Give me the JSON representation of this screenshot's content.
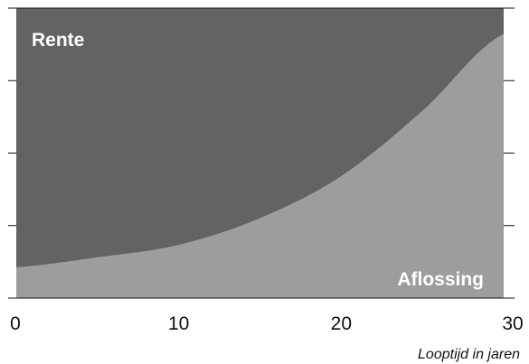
{
  "chart_data": {
    "type": "area",
    "xlabel": "Looptijd in jaren",
    "ylabel": "",
    "x_ticks": [
      0,
      10,
      20,
      30
    ],
    "xlim": [
      0,
      30
    ],
    "ylim": [
      0,
      100
    ],
    "y_tick_count": 3,
    "series": [
      {
        "name": "Aflossing",
        "color": "#9d9d9b",
        "x": [
          0,
          5,
          10,
          15,
          20,
          25,
          30
        ],
        "values": [
          10.6,
          14.0,
          18.3,
          27.5,
          42.0,
          64.5,
          91.0
        ]
      },
      {
        "name": "Rente",
        "color": "#636362",
        "x": [
          0,
          5,
          10,
          15,
          20,
          25,
          30
        ],
        "values": [
          89.4,
          86.0,
          81.7,
          72.5,
          58.0,
          35.5,
          9.0
        ]
      }
    ]
  },
  "colors": {
    "axis": "#111111",
    "background": "#ffffff"
  }
}
